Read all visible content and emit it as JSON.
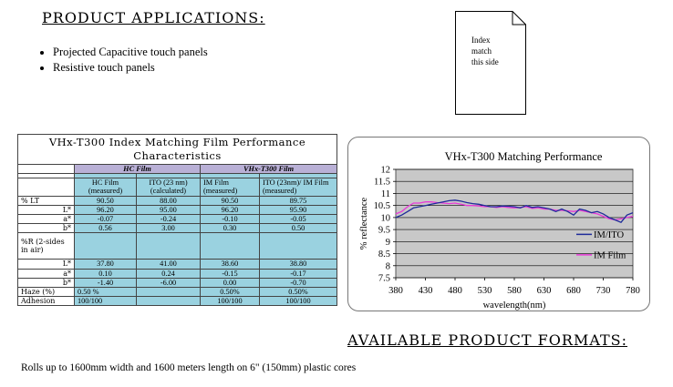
{
  "applications": {
    "heading": "PRODUCT APPLICATIONS:",
    "items": [
      "Projected Capacitive touch panels",
      "Resistive touch panels"
    ]
  },
  "index_note": {
    "lines": [
      "Index",
      "match",
      "this side"
    ]
  },
  "table": {
    "title_line1": "VHx-T300 Index Matching Film Performance",
    "title_line2": "Characteristics",
    "group_hc": "HC Film",
    "group_vhx": "VHx-T300 Film",
    "col_headers": [
      "HC Film (measured)",
      "ITO (23 nm) (calculated)",
      "IM Film (measured)",
      "ITO (23nm)/ IM Film (measured)"
    ],
    "rows": [
      {
        "label": "% LT",
        "values": [
          "90.50",
          "88.00",
          "90.50",
          "89.75"
        ]
      },
      {
        "label": "L*",
        "values": [
          "96.20",
          "95.00",
          "96.20",
          "95.90"
        ]
      },
      {
        "label": "a*",
        "values": [
          "-0.07",
          "-0.24",
          "-0.10",
          "-0.05"
        ]
      },
      {
        "label": "b*",
        "values": [
          "0.56",
          "3.00",
          "0.30",
          "0.50"
        ]
      },
      {
        "label": "%R (2-sides in air)",
        "values": [
          "",
          "",
          "",
          ""
        ]
      },
      {
        "label": "L*",
        "values": [
          "37.80",
          "41.00",
          "38.60",
          "38.80"
        ]
      },
      {
        "label": "a*",
        "values": [
          "0.10",
          "0.24",
          "-0.15",
          "-0.17"
        ]
      },
      {
        "label": "b*",
        "values": [
          "-1.40",
          "-6.00",
          "0.00",
          "-0.70"
        ]
      },
      {
        "label": "Haze (%)",
        "values": [
          "0.50 %",
          "",
          "0.50%",
          "0.50%"
        ]
      },
      {
        "label": "Adhesion",
        "values": [
          "100/100",
          "",
          "100/100",
          "100/100"
        ]
      }
    ]
  },
  "chart_data": {
    "type": "line",
    "title": "VHx-T300 Matching Performance",
    "xlabel": "wavelength(nm)",
    "ylabel": "% reflectance",
    "xlim": [
      380,
      780
    ],
    "ylim": [
      7.5,
      12
    ],
    "xticks": [
      "380",
      "430",
      "480",
      "530",
      "580",
      "630",
      "680",
      "730",
      "780"
    ],
    "yticks": [
      "7.5",
      "8",
      "8.5",
      "9",
      "9.5",
      "10",
      "10.5",
      "11",
      "11.5",
      "12"
    ],
    "grid": true,
    "legend_position": "right",
    "x": [
      380,
      390,
      400,
      410,
      420,
      430,
      440,
      450,
      460,
      470,
      480,
      490,
      500,
      510,
      520,
      530,
      540,
      550,
      560,
      570,
      580,
      590,
      600,
      610,
      620,
      630,
      640,
      650,
      660,
      670,
      680,
      690,
      700,
      710,
      720,
      730,
      740,
      750,
      760,
      770,
      780
    ],
    "series": [
      {
        "name": "IM/ITO",
        "color": "#1e2b9a",
        "values": [
          10.0,
          10.1,
          10.25,
          10.4,
          10.45,
          10.5,
          10.55,
          10.6,
          10.65,
          10.7,
          10.72,
          10.68,
          10.62,
          10.58,
          10.55,
          10.5,
          10.45,
          10.45,
          10.48,
          10.47,
          10.45,
          10.4,
          10.5,
          10.42,
          10.45,
          10.4,
          10.35,
          10.25,
          10.35,
          10.25,
          10.1,
          10.35,
          10.3,
          10.2,
          10.25,
          10.15,
          10.0,
          9.9,
          9.8,
          10.1,
          10.2
        ]
      },
      {
        "name": "IM Film",
        "color": "#e83ad8",
        "values": [
          10.15,
          10.25,
          10.45,
          10.6,
          10.6,
          10.65,
          10.65,
          10.62,
          10.6,
          10.58,
          10.6,
          10.55,
          10.5,
          10.5,
          10.48,
          10.45,
          10.45,
          10.42,
          10.45,
          10.42,
          10.4,
          10.42,
          10.45,
          10.38,
          10.4,
          10.35,
          10.35,
          10.3,
          10.3,
          10.28,
          10.25,
          10.3,
          10.25,
          10.2,
          10.15,
          10.05,
          9.95,
          9.9,
          9.95,
          10.0,
          10.05
        ]
      }
    ]
  },
  "formats_heading": "AVAILABLE PRODUCT FORMATS:",
  "rolls_text": "Rolls up to 1600mm width and 1600 meters length on 6\" (150mm) plastic cores"
}
